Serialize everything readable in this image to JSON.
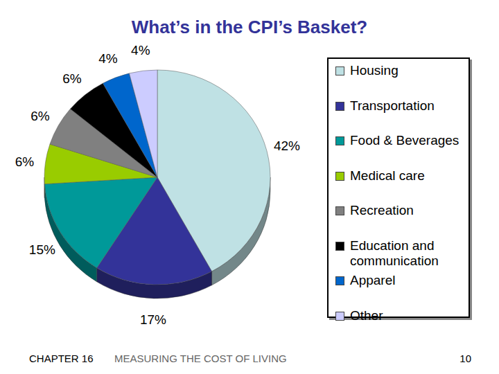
{
  "chart_data": {
    "type": "pie",
    "title": "What’s in the CPI’s Basket?",
    "categories": [
      "Housing",
      "Transportation",
      "Food & Beverages",
      "Medical care",
      "Recreation",
      "Education and communication",
      "Apparel",
      "Other"
    ],
    "values": [
      42,
      17,
      15,
      6,
      6,
      6,
      4,
      4
    ],
    "value_labels": [
      "42%",
      "17%",
      "15%",
      "6%",
      "6%",
      "6%",
      "4%",
      "4%"
    ],
    "colors": [
      "#bfe1e4",
      "#333399",
      "#009999",
      "#99cc00",
      "#808080",
      "#000000",
      "#0066cc",
      "#ccccff"
    ],
    "data_labels": true,
    "legend": "right"
  },
  "footer": {
    "chapter": "CHAPTER 16",
    "section": "MEASURING THE COST OF LIVING",
    "page": "10"
  }
}
